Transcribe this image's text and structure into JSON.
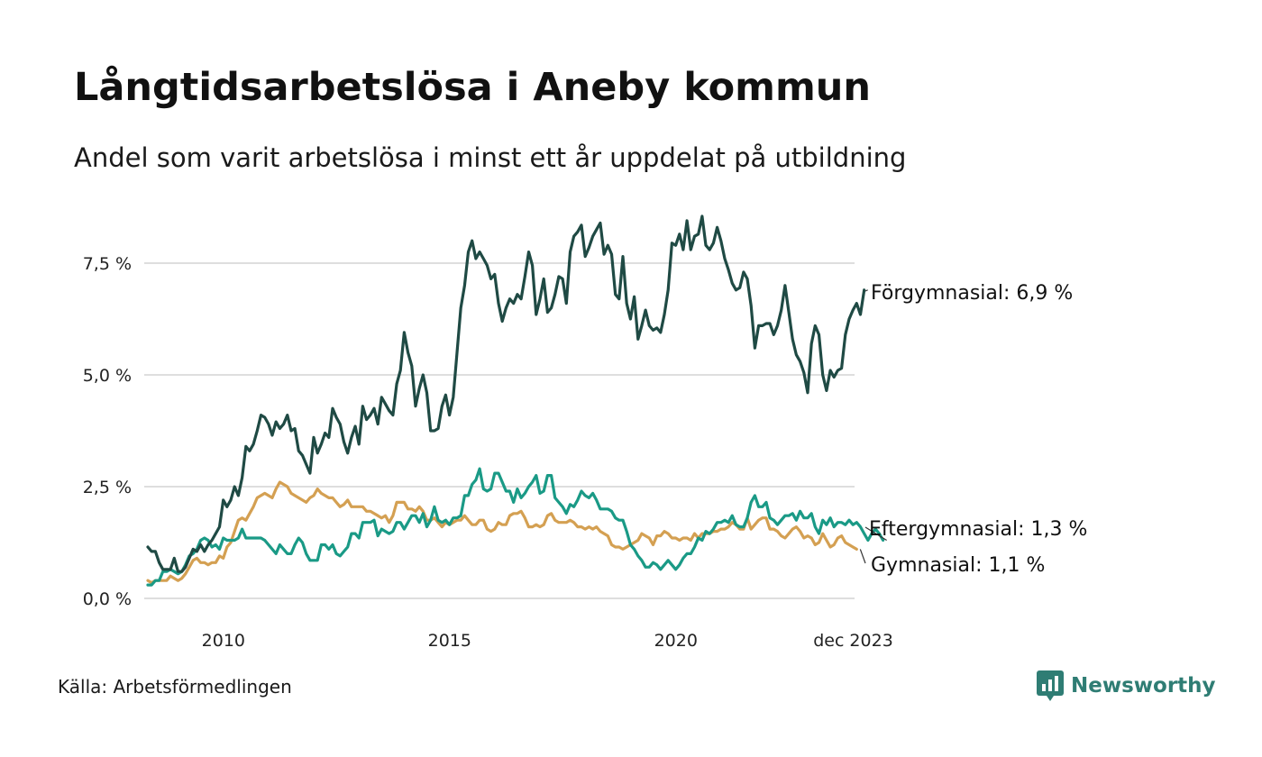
{
  "header": {
    "title": "Långtidsarbetslösa i Aneby kommun",
    "subtitle": "Andel som varit arbetslösa i minst ett år uppdelat på utbildning"
  },
  "footer": {
    "source": "Källa: Arbetsförmedlingen",
    "brand": "Newsworthy"
  },
  "colors": {
    "forgymnasial": "#1f4a44",
    "eftergymnasial": "#1a9a86",
    "gymnasial": "#d4a052",
    "grid": "#dedede"
  },
  "chart_data": {
    "type": "line",
    "title": "Långtidsarbetslösa i Aneby kommun",
    "subtitle": "Andel som varit arbetslösa i minst ett år uppdelat på utbildning",
    "xlabel": "",
    "ylabel": "",
    "ylim": [
      0,
      8.6
    ],
    "xlim": [
      2008.25,
      2023.95
    ],
    "x_start": 2008.33,
    "x_step_months": 1,
    "y_ticks": [
      0,
      2.5,
      5.0,
      7.5
    ],
    "y_tick_labels": [
      "0,0 %",
      "2,5 %",
      "5,0 %",
      "7,5 %"
    ],
    "x_ticks": [
      2010,
      2015,
      2020,
      2023.92
    ],
    "x_tick_labels": [
      "2010",
      "2015",
      "2020",
      "dec 2023"
    ],
    "series": [
      {
        "name": "Förgymnasial",
        "end_label": "Förgymnasial: 6,9 %",
        "color_key": "forgymnasial",
        "values": [
          1.15,
          1.05,
          1.05,
          0.8,
          0.65,
          0.65,
          0.65,
          0.9,
          0.6,
          0.6,
          0.7,
          0.9,
          1.1,
          1.05,
          1.2,
          1.05,
          1.2,
          1.3,
          1.45,
          1.6,
          2.2,
          2.05,
          2.2,
          2.5,
          2.3,
          2.7,
          3.4,
          3.3,
          3.45,
          3.75,
          4.1,
          4.05,
          3.9,
          3.65,
          3.95,
          3.8,
          3.9,
          4.1,
          3.75,
          3.8,
          3.3,
          3.2,
          3.0,
          2.8,
          3.6,
          3.25,
          3.45,
          3.7,
          3.6,
          4.25,
          4.05,
          3.9,
          3.5,
          3.25,
          3.6,
          3.85,
          3.45,
          4.3,
          4.0,
          4.1,
          4.25,
          3.9,
          4.5,
          4.35,
          4.2,
          4.1,
          4.8,
          5.1,
          5.95,
          5.5,
          5.2,
          4.3,
          4.7,
          5.0,
          4.6,
          3.75,
          3.75,
          3.8,
          4.3,
          4.55,
          4.1,
          4.5,
          5.5,
          6.5,
          7.0,
          7.75,
          8.0,
          7.6,
          7.75,
          7.6,
          7.45,
          7.15,
          7.25,
          6.6,
          6.2,
          6.5,
          6.7,
          6.6,
          6.8,
          6.7,
          7.2,
          7.75,
          7.45,
          6.35,
          6.7,
          7.15,
          6.4,
          6.5,
          6.8,
          7.2,
          7.15,
          6.6,
          7.75,
          8.1,
          8.2,
          8.35,
          7.65,
          7.85,
          8.1,
          8.25,
          8.4,
          7.7,
          7.9,
          7.7,
          6.8,
          6.7,
          7.65,
          6.6,
          6.25,
          6.75,
          5.8,
          6.1,
          6.45,
          6.1,
          6.0,
          6.05,
          5.95,
          6.35,
          6.9,
          7.95,
          7.9,
          8.15,
          7.8,
          8.45,
          7.8,
          8.1,
          8.15,
          8.55,
          7.9,
          7.8,
          7.95,
          8.3,
          8.0,
          7.6,
          7.35,
          7.05,
          6.9,
          6.95,
          7.3,
          7.15,
          6.55,
          5.6,
          6.1,
          6.1,
          6.15,
          6.15,
          5.9,
          6.1,
          6.45,
          7.0,
          6.4,
          5.8,
          5.45,
          5.3,
          5.05,
          4.6,
          5.7,
          6.1,
          5.9,
          5.0,
          4.65,
          5.1,
          4.95,
          5.1,
          5.15,
          5.9,
          6.25,
          6.45,
          6.6,
          6.35,
          6.9
        ]
      },
      {
        "name": "Eftergymnasial",
        "end_label": "Eftergymnasial: 1,3 %",
        "color_key": "eftergymnasial",
        "values": [
          0.3,
          0.3,
          0.4,
          0.4,
          0.6,
          0.6,
          0.65,
          0.6,
          0.55,
          0.6,
          0.75,
          0.95,
          1.0,
          1.1,
          1.3,
          1.35,
          1.3,
          1.15,
          1.2,
          1.1,
          1.35,
          1.3,
          1.3,
          1.3,
          1.35,
          1.55,
          1.35,
          1.35,
          1.35,
          1.35,
          1.35,
          1.3,
          1.2,
          1.1,
          1.0,
          1.2,
          1.1,
          1.0,
          1.0,
          1.2,
          1.35,
          1.25,
          1.0,
          0.85,
          0.85,
          0.85,
          1.2,
          1.2,
          1.1,
          1.2,
          1.0,
          0.95,
          1.05,
          1.15,
          1.45,
          1.45,
          1.35,
          1.7,
          1.7,
          1.7,
          1.75,
          1.4,
          1.55,
          1.5,
          1.45,
          1.5,
          1.7,
          1.7,
          1.55,
          1.7,
          1.85,
          1.85,
          1.7,
          1.9,
          1.6,
          1.75,
          2.05,
          1.75,
          1.7,
          1.75,
          1.65,
          1.8,
          1.8,
          1.85,
          2.3,
          2.3,
          2.55,
          2.65,
          2.9,
          2.45,
          2.4,
          2.45,
          2.8,
          2.8,
          2.6,
          2.4,
          2.4,
          2.15,
          2.45,
          2.25,
          2.35,
          2.5,
          2.6,
          2.75,
          2.35,
          2.4,
          2.75,
          2.75,
          2.25,
          2.15,
          2.05,
          1.9,
          2.1,
          2.05,
          2.2,
          2.4,
          2.3,
          2.25,
          2.35,
          2.2,
          2.0,
          2.0,
          2.0,
          1.95,
          1.8,
          1.75,
          1.75,
          1.5,
          1.2,
          1.1,
          0.95,
          0.85,
          0.7,
          0.7,
          0.8,
          0.75,
          0.65,
          0.75,
          0.85,
          0.75,
          0.65,
          0.75,
          0.9,
          1.0,
          1.0,
          1.15,
          1.35,
          1.3,
          1.5,
          1.45,
          1.55,
          1.7,
          1.7,
          1.75,
          1.7,
          1.85,
          1.65,
          1.6,
          1.6,
          1.8,
          2.15,
          2.3,
          2.05,
          2.05,
          2.15,
          1.8,
          1.75,
          1.65,
          1.75,
          1.85,
          1.85,
          1.9,
          1.75,
          1.95,
          1.8,
          1.8,
          1.9,
          1.6,
          1.45,
          1.75,
          1.65,
          1.8,
          1.6,
          1.7,
          1.7,
          1.65,
          1.75,
          1.65,
          1.7,
          1.6,
          1.45,
          1.3,
          1.45,
          1.55,
          1.45,
          1.3
        ]
      },
      {
        "name": "Gymnasial",
        "end_label": "Gymnasial: 1,1 %",
        "color_key": "gymnasial",
        "values": [
          0.4,
          0.35,
          0.4,
          0.4,
          0.4,
          0.4,
          0.5,
          0.45,
          0.4,
          0.45,
          0.55,
          0.7,
          0.85,
          0.9,
          0.8,
          0.8,
          0.75,
          0.8,
          0.8,
          0.95,
          0.9,
          1.15,
          1.25,
          1.5,
          1.75,
          1.8,
          1.75,
          1.9,
          2.05,
          2.25,
          2.3,
          2.35,
          2.3,
          2.25,
          2.45,
          2.6,
          2.55,
          2.5,
          2.35,
          2.3,
          2.25,
          2.2,
          2.15,
          2.25,
          2.3,
          2.45,
          2.35,
          2.3,
          2.25,
          2.25,
          2.15,
          2.05,
          2.1,
          2.2,
          2.05,
          2.05,
          2.05,
          2.05,
          1.95,
          1.95,
          1.9,
          1.85,
          1.8,
          1.85,
          1.7,
          1.85,
          2.15,
          2.15,
          2.15,
          2.0,
          2.0,
          1.95,
          2.05,
          1.95,
          1.75,
          1.75,
          1.8,
          1.7,
          1.6,
          1.7,
          1.65,
          1.7,
          1.75,
          1.75,
          1.85,
          1.75,
          1.65,
          1.65,
          1.75,
          1.75,
          1.55,
          1.5,
          1.55,
          1.7,
          1.65,
          1.65,
          1.85,
          1.9,
          1.9,
          1.95,
          1.8,
          1.6,
          1.6,
          1.65,
          1.6,
          1.65,
          1.85,
          1.9,
          1.75,
          1.7,
          1.7,
          1.7,
          1.75,
          1.7,
          1.6,
          1.6,
          1.55,
          1.6,
          1.55,
          1.6,
          1.5,
          1.45,
          1.4,
          1.2,
          1.15,
          1.15,
          1.1,
          1.15,
          1.2,
          1.25,
          1.3,
          1.45,
          1.4,
          1.35,
          1.2,
          1.4,
          1.4,
          1.5,
          1.45,
          1.35,
          1.35,
          1.3,
          1.35,
          1.35,
          1.3,
          1.45,
          1.35,
          1.45,
          1.45,
          1.45,
          1.5,
          1.5,
          1.55,
          1.55,
          1.6,
          1.7,
          1.65,
          1.55,
          1.55,
          1.8,
          1.55,
          1.65,
          1.75,
          1.8,
          1.8,
          1.55,
          1.55,
          1.5,
          1.4,
          1.35,
          1.45,
          1.55,
          1.6,
          1.5,
          1.35,
          1.4,
          1.35,
          1.2,
          1.25,
          1.45,
          1.3,
          1.15,
          1.2,
          1.35,
          1.4,
          1.25,
          1.2,
          1.15,
          1.1
        ]
      }
    ]
  }
}
